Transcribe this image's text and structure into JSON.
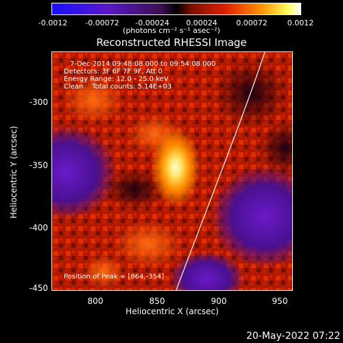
{
  "colorbar": {
    "ticks": [
      "-0.0012",
      "-0.00072",
      "-0.00024",
      "0.00024",
      "0.00072",
      "0.0012"
    ],
    "units": "(photons cm⁻² s⁻¹ asec⁻²)"
  },
  "title": "Reconstructed RHESSI Image",
  "info": {
    "time": "7-Dec-2014 09:48:08.000 to 09:54:08.000",
    "detectors": "Detectors: 3F 6F 7F 9F, Att 0",
    "energy": "Energy Range: 12.0 - 25.0 keV",
    "clean": "Clean    Total counts: 5.14E+03",
    "peak": "Position of Peak = [864,-354]"
  },
  "axes": {
    "xlabel": "Heliocentric X (arcsec)",
    "ylabel": "Heliocentric Y (arcsec)",
    "xticks": [
      "800",
      "850",
      "900",
      "950"
    ],
    "yticks": [
      "-300",
      "-350",
      "-400",
      "-450"
    ]
  },
  "footer": {
    "date": "20-May-2022 07:22"
  },
  "chart_data": {
    "type": "heatmap",
    "title": "Reconstructed RHESSI Image",
    "xlabel": "Heliocentric X (arcsec)",
    "ylabel": "Heliocentric Y (arcsec)",
    "xlim": [
      765,
      960
    ],
    "ylim": [
      -452,
      -260
    ],
    "colorbar_range": [
      -0.0012,
      0.0012
    ],
    "peak": [
      864,
      -354
    ]
  }
}
